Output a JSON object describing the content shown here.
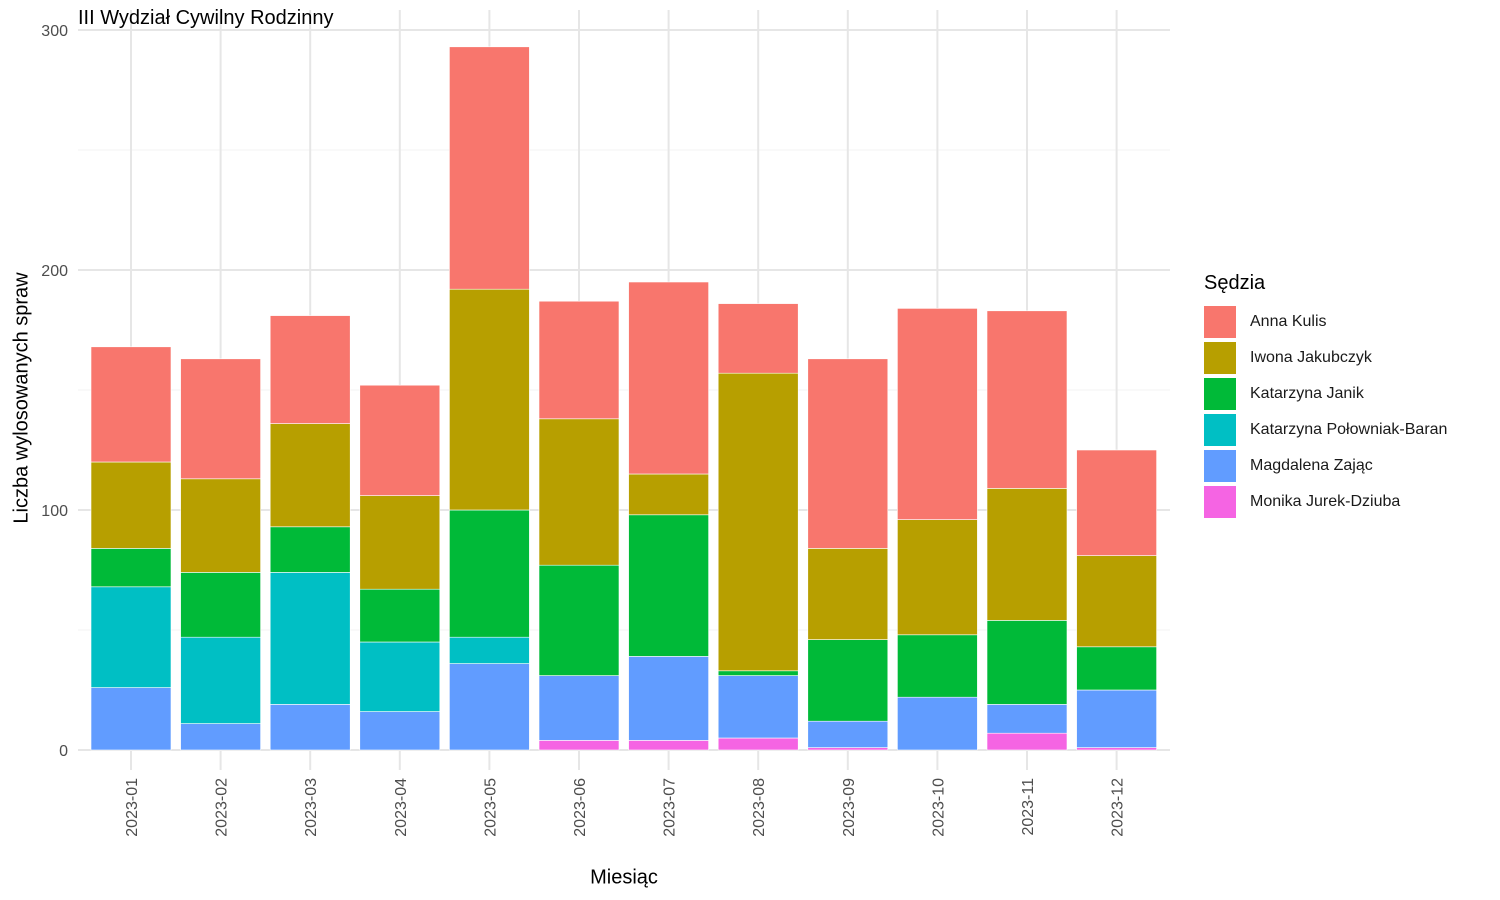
{
  "chart_data": {
    "type": "bar",
    "stacked": true,
    "title": "III Wydział Cywilny Rodzinny",
    "xlabel": "Miesiąc",
    "ylabel": "Liczba wylosowanych spraw",
    "ylim": [
      0,
      300
    ],
    "yticks": [
      0,
      100,
      200,
      300
    ],
    "grid": true,
    "legend_title": "Sędzia",
    "legend_position": "right",
    "categories": [
      "2023-01",
      "2023-02",
      "2023-03",
      "2023-04",
      "2023-05",
      "2023-06",
      "2023-07",
      "2023-08",
      "2023-09",
      "2023-10",
      "2023-11",
      "2023-12"
    ],
    "series": [
      {
        "name": "Monika Jurek-Dziuba",
        "color": "#F564E3",
        "values": [
          0,
          0,
          0,
          0,
          0,
          4,
          4,
          5,
          1,
          0,
          7,
          1
        ]
      },
      {
        "name": "Magdalena Zając",
        "color": "#619CFF",
        "values": [
          26,
          11,
          19,
          16,
          36,
          27,
          35,
          26,
          11,
          22,
          12,
          24
        ]
      },
      {
        "name": "Katarzyna Połowniak-Baran",
        "color": "#00BFC4",
        "values": [
          42,
          36,
          55,
          29,
          11,
          0,
          0,
          0,
          0,
          0,
          0,
          0
        ]
      },
      {
        "name": "Katarzyna Janik",
        "color": "#00BA38",
        "values": [
          16,
          27,
          19,
          22,
          53,
          46,
          59,
          2,
          34,
          26,
          35,
          18
        ]
      },
      {
        "name": "Iwona Jakubczyk",
        "color": "#B79F00",
        "values": [
          36,
          39,
          43,
          39,
          92,
          61,
          17,
          124,
          38,
          48,
          55,
          38
        ]
      },
      {
        "name": "Anna Kulis",
        "color": "#F8766D",
        "values": [
          48,
          50,
          45,
          46,
          101,
          49,
          80,
          29,
          79,
          88,
          74,
          44
        ]
      }
    ],
    "legend_order": [
      "Anna Kulis",
      "Iwona Jakubczyk",
      "Katarzyna Janik",
      "Katarzyna Połowniak-Baran",
      "Magdalena Zając",
      "Monika Jurek-Dziuba"
    ]
  }
}
